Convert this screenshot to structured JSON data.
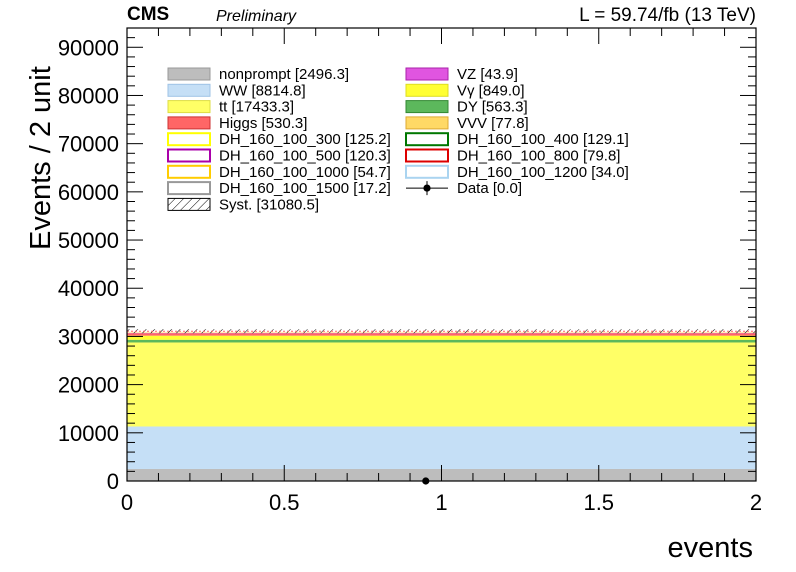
{
  "header": {
    "cms": "CMS",
    "preliminary": "Preliminary",
    "lumi": "L = 59.74/fb (13 TeV)"
  },
  "chart_data": {
    "type": "area",
    "xlabel": "events",
    "ylabel": "Events / 2 unit",
    "xlim": [
      0,
      2
    ],
    "ylim": [
      0,
      94000
    ],
    "x_ticks": [
      0,
      0.5,
      1,
      1.5,
      2
    ],
    "x_tick_labels": [
      "0",
      "0.5",
      "1",
      "1.5",
      "2"
    ],
    "y_ticks": [
      0,
      10000,
      20000,
      30000,
      40000,
      50000,
      60000,
      70000,
      80000,
      90000
    ],
    "y_tick_labels": [
      "0",
      "10000",
      "20000",
      "30000",
      "40000",
      "50000",
      "60000",
      "70000",
      "80000",
      "90000"
    ],
    "bins": [
      [
        0,
        2
      ]
    ],
    "stack": [
      {
        "name": "nonprompt",
        "value": 2496.3,
        "color": "#bdbdbd"
      },
      {
        "name": "WW",
        "value": 8814.8,
        "color": "#c5dff6"
      },
      {
        "name": "tt",
        "value": 17433.3,
        "color": "#ffff66"
      },
      {
        "name": "DY",
        "value": 563.3,
        "color": "#5cb85c"
      },
      {
        "name": "Vγ",
        "value": 849.0,
        "color": "#ffff33"
      },
      {
        "name": "Higgs",
        "value": 530.3,
        "color": "#ff6666"
      },
      {
        "name": "VZ",
        "value": 43.9,
        "color": "#e055e0"
      },
      {
        "name": "VVV",
        "value": 77.8,
        "color": "#ffd966"
      }
    ],
    "systematics_total": 31080.5,
    "data_points": [
      {
        "x": 0.95,
        "y": 0,
        "label": "Data"
      }
    ],
    "legend": {
      "placement": "top-left",
      "left": [
        {
          "label": "nonprompt [2496.3]",
          "style": "fill",
          "fill": "#bdbdbd",
          "stroke": "#999999"
        },
        {
          "label": "WW [8814.8]",
          "style": "fill",
          "fill": "#c5dff6",
          "stroke": "#9fc3e6"
        },
        {
          "label": "tt [17433.3]",
          "style": "fill",
          "fill": "#ffff66",
          "stroke": "#dddd44"
        },
        {
          "label": "Higgs [530.3]",
          "style": "fill",
          "fill": "#ff6666",
          "stroke": "#cc3333"
        },
        {
          "label": "DH_160_100_300 [125.2]",
          "style": "line",
          "fill": "#ffffff",
          "stroke": "#ffff00"
        },
        {
          "label": "DH_160_100_500 [120.3]",
          "style": "line",
          "fill": "#ffffff",
          "stroke": "#aa00aa"
        },
        {
          "label": "DH_160_100_1000 [54.7]",
          "style": "line",
          "fill": "#ffffff",
          "stroke": "#ffcc00"
        },
        {
          "label": "DH_160_100_1500 [17.2]",
          "style": "line",
          "fill": "#ffffff",
          "stroke": "#999999"
        },
        {
          "label": "Syst. [31080.5]",
          "style": "hatch",
          "fill": "#ffffff",
          "stroke": "#000000"
        }
      ],
      "right": [
        {
          "label": "VZ [43.9]",
          "style": "fill",
          "fill": "#e055e0",
          "stroke": "#aa22aa"
        },
        {
          "label": "Vγ [849.0]",
          "style": "fill",
          "fill": "#ffff33",
          "stroke": "#dddd22"
        },
        {
          "label": "DY [563.3]",
          "style": "fill",
          "fill": "#5cb85c",
          "stroke": "#338833"
        },
        {
          "label": "VVV [77.8]",
          "style": "fill",
          "fill": "#ffd966",
          "stroke": "#ddaa33"
        },
        {
          "label": "DH_160_100_400 [129.1]",
          "style": "line",
          "fill": "#ffffff",
          "stroke": "#007700"
        },
        {
          "label": "DH_160_100_800 [79.8]",
          "style": "line",
          "fill": "#ffffff",
          "stroke": "#dd0000"
        },
        {
          "label": "DH_160_100_1200 [34.0]",
          "style": "line",
          "fill": "#ffffff",
          "stroke": "#aad4f0"
        },
        {
          "label": "Data [0.0]",
          "style": "marker",
          "fill": "#000000",
          "stroke": "#000000"
        }
      ]
    }
  }
}
